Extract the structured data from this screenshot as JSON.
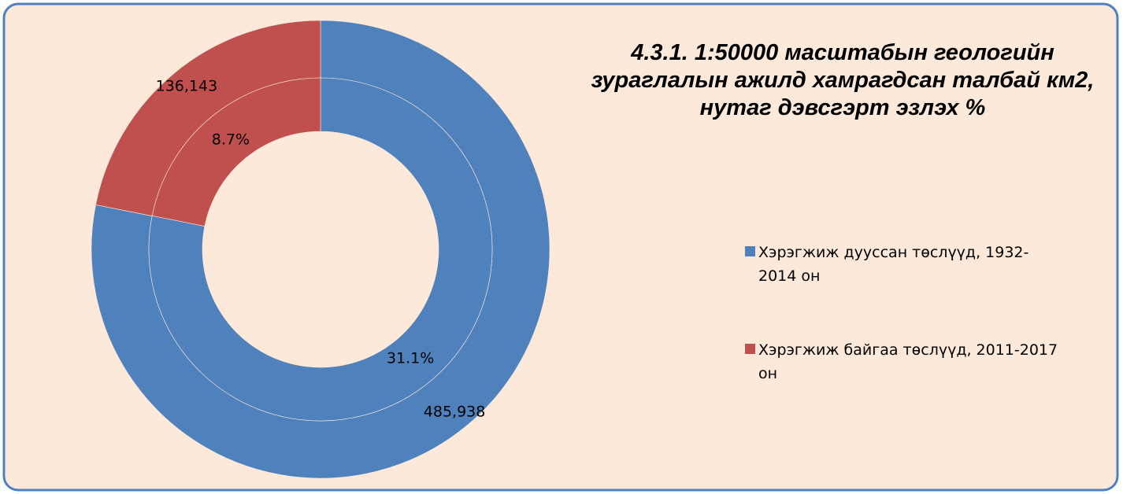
{
  "chart_data": {
    "type": "doughnut",
    "title": "4.3.1.  1:50000 масштабын геологийн зураглалын ажилд хамрагдсан талбай км2, нутаг дэвсгэрт эзлэх %",
    "categories": [
      "Хэрэгжиж дууссан төслүүд, 1932-2014 он",
      "Хэрэгжиж байгаа төслүүд, 2011-2017 он"
    ],
    "colors": [
      "#4f81bd",
      "#c0504d"
    ],
    "series": [
      {
        "values": [
          485938,
          136143
        ],
        "value_labels": [
          "485,938",
          "136,143"
        ]
      },
      {
        "values": [
          31.1,
          8.7
        ],
        "value_labels": [
          "31.1%",
          "8.7%"
        ]
      }
    ],
    "legend": "right"
  }
}
